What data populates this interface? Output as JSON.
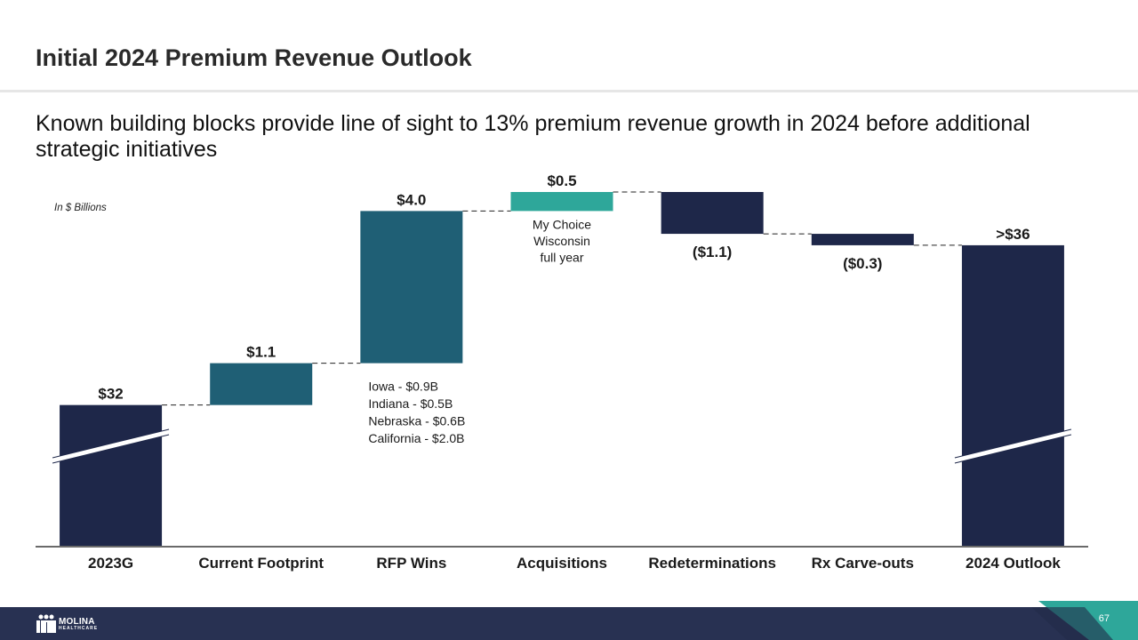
{
  "slide": {
    "title": "Initial 2024 Premium Revenue Outlook",
    "subtitle": "Known building blocks provide line of sight to 13% premium revenue growth in 2024 before additional strategic initiatives",
    "units_note": "In $ Billions",
    "page_number": "67",
    "logo": {
      "main": "MOLINA",
      "sub": "HEALTHCARE"
    }
  },
  "colors": {
    "total_bar": "#1e2749",
    "increase_bar": "#1f5f75",
    "acquisition_bar": "#2ea79a",
    "decrease_bar": "#1e2749",
    "footer": "#283152",
    "footer_accent": "#2ea79a"
  },
  "chart_data": {
    "type": "bar",
    "subtype": "waterfall",
    "title": "Initial 2024 Premium Revenue Outlook",
    "xlabel": "",
    "ylabel": "In $ Billions",
    "y_axis_broken": true,
    "ylim": [
      28.3,
      37.6
    ],
    "grid": false,
    "legend": "none",
    "categories": [
      "2023G",
      "Current Footprint",
      "RFP Wins",
      "Acquisitions",
      "Redeterminations",
      "Rx Carve-outs",
      "2024 Outlook"
    ],
    "values": [
      32,
      1.1,
      4.0,
      0.5,
      -1.1,
      -0.3,
      36.2
    ],
    "kinds": [
      "total",
      "increase",
      "increase",
      "acquisition",
      "decrease",
      "decrease",
      "total"
    ],
    "data_labels": [
      "$32",
      "$1.1",
      "$4.0",
      "$0.5",
      "($1.1)",
      "($0.3)",
      ">$36"
    ],
    "annotations": [
      {
        "category": "RFP Wins",
        "lines": [
          "Iowa - $0.9B",
          "Indiana - $0.5B",
          "Nebraska - $0.6B",
          "California - $2.0B"
        ]
      },
      {
        "category": "Acquisitions",
        "lines": [
          "My Choice",
          "Wisconsin",
          "full year"
        ]
      }
    ]
  }
}
